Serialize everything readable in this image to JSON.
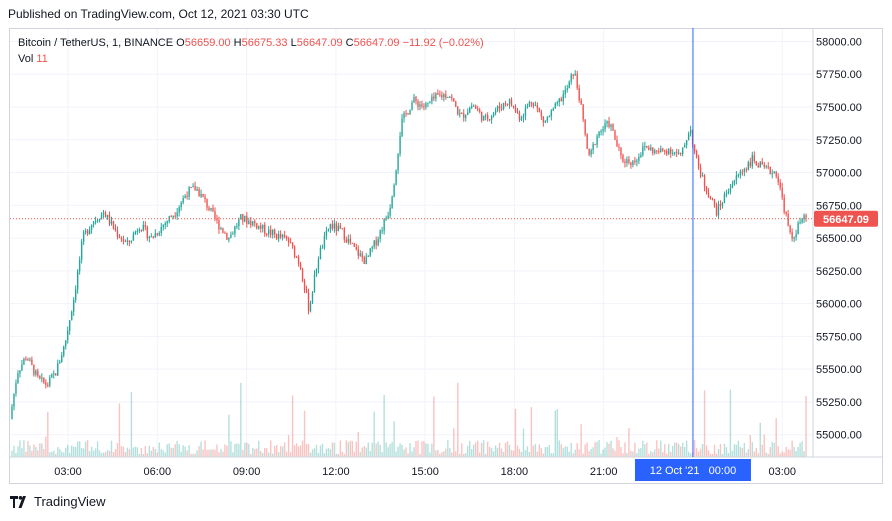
{
  "header": {
    "published": "Published on TradingView.com, Oct 12, 2021 03:30 UTC"
  },
  "legend": {
    "symbol": "Bitcoin / TetherUS, 1, BINANCE",
    "o_label": "O",
    "o_value": "56659.00",
    "h_label": "H",
    "h_value": "56675.33",
    "l_label": "L",
    "l_value": "56647.09",
    "c_label": "C",
    "c_value": "56647.09",
    "change": "−11.92 (−0.02%)",
    "vol_label": "Vol",
    "vol_value": "11"
  },
  "footer": {
    "brand": "TradingView"
  },
  "colors": {
    "up": "#26a69a",
    "down": "#ef5350",
    "crosshair": "#2962ff",
    "price_tag": "#ef5350",
    "time_tag": "#2962ff"
  },
  "chart_data": {
    "type": "candlestick",
    "symbol": "BTCUSDT",
    "interval": "1",
    "y_ticks": [
      58000,
      57750,
      57500,
      57250,
      57000,
      56750,
      56500,
      56250,
      56000,
      55750,
      55500,
      55250,
      55000
    ],
    "y_tick_labels": [
      "58000.00",
      "57750.00",
      "57500.00",
      "57250.00",
      "57000.00",
      "56750.00",
      "56500.00",
      "56250.00",
      "56000.00",
      "55750.00",
      "55500.00",
      "55250.00",
      "55000.00"
    ],
    "ylim": [
      54830,
      58095
    ],
    "x_tick_labels": [
      "03:00",
      "06:00",
      "09:00",
      "12:00",
      "15:00",
      "18:00",
      "21:00",
      "03:00"
    ],
    "x_tick_hours": [
      3,
      6,
      9,
      12,
      15,
      18,
      21,
      27
    ],
    "xlim_hours": [
      1.05,
      28.0
    ],
    "current_price": 56647.09,
    "current_price_label": "56647.09",
    "crosshair_label": "12 Oct '21   00:00",
    "crosshair_hour": 24,
    "price_path": [
      [
        1.05,
        55120
      ],
      [
        1.3,
        55480
      ],
      [
        1.6,
        55600
      ],
      [
        2.0,
        55420
      ],
      [
        2.3,
        55380
      ],
      [
        2.6,
        55480
      ],
      [
        2.9,
        55700
      ],
      [
        3.2,
        56050
      ],
      [
        3.5,
        56500
      ],
      [
        3.8,
        56620
      ],
      [
        4.2,
        56700
      ],
      [
        4.6,
        56550
      ],
      [
        5.0,
        56450
      ],
      [
        5.4,
        56600
      ],
      [
        5.8,
        56500
      ],
      [
        6.2,
        56600
      ],
      [
        6.6,
        56700
      ],
      [
        7.0,
        56850
      ],
      [
        7.3,
        56880
      ],
      [
        7.6,
        56780
      ],
      [
        8.0,
        56620
      ],
      [
        8.4,
        56500
      ],
      [
        8.8,
        56650
      ],
      [
        9.2,
        56620
      ],
      [
        9.6,
        56560
      ],
      [
        10.0,
        56520
      ],
      [
        10.4,
        56480
      ],
      [
        10.8,
        56300
      ],
      [
        11.1,
        55950
      ],
      [
        11.4,
        56350
      ],
      [
        11.8,
        56600
      ],
      [
        12.2,
        56550
      ],
      [
        12.6,
        56420
      ],
      [
        13.0,
        56320
      ],
      [
        13.4,
        56500
      ],
      [
        13.8,
        56720
      ],
      [
        14.0,
        57000
      ],
      [
        14.2,
        57380
      ],
      [
        14.6,
        57550
      ],
      [
        15.0,
        57500
      ],
      [
        15.4,
        57580
      ],
      [
        15.8,
        57600
      ],
      [
        16.2,
        57420
      ],
      [
        16.6,
        57520
      ],
      [
        17.0,
        57400
      ],
      [
        17.4,
        57480
      ],
      [
        17.8,
        57550
      ],
      [
        18.2,
        57420
      ],
      [
        18.6,
        57560
      ],
      [
        19.0,
        57380
      ],
      [
        19.4,
        57500
      ],
      [
        19.8,
        57650
      ],
      [
        20.0,
        57780
      ],
      [
        20.2,
        57550
      ],
      [
        20.5,
        57100
      ],
      [
        20.8,
        57300
      ],
      [
        21.2,
        57380
      ],
      [
        21.6,
        57100
      ],
      [
        22.0,
        57080
      ],
      [
        22.4,
        57200
      ],
      [
        22.8,
        57150
      ],
      [
        23.2,
        57180
      ],
      [
        23.6,
        57120
      ],
      [
        23.9,
        57350
      ],
      [
        24.1,
        57100
      ],
      [
        24.4,
        56900
      ],
      [
        24.8,
        56700
      ],
      [
        25.2,
        56880
      ],
      [
        25.6,
        57000
      ],
      [
        26.0,
        57100
      ],
      [
        26.4,
        57020
      ],
      [
        26.8,
        57000
      ],
      [
        27.0,
        56800
      ],
      [
        27.3,
        56480
      ],
      [
        27.6,
        56620
      ],
      [
        27.8,
        56650
      ]
    ]
  }
}
